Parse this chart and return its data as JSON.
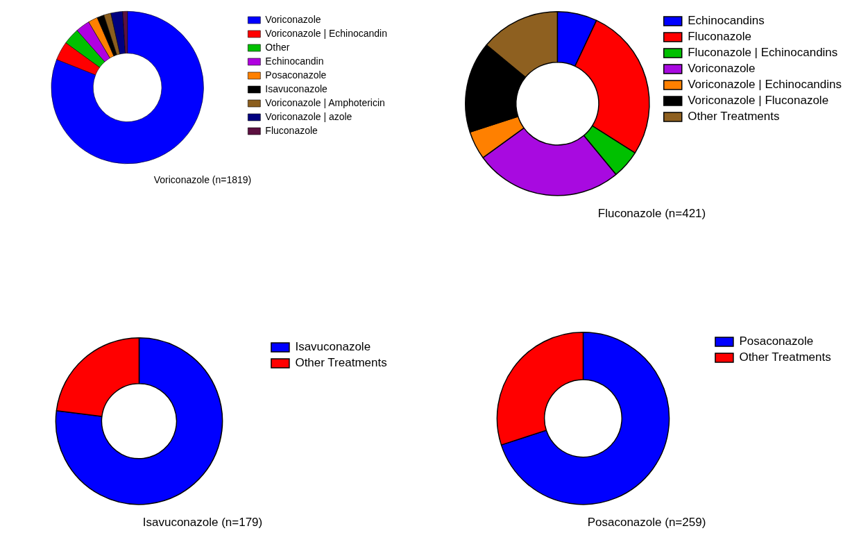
{
  "chart_data": [
    {
      "type": "donut",
      "title": "Voriconazole (n=1819)",
      "legend": "right",
      "categories": [
        "Voriconazole",
        "Voriconazole | Echinocandin",
        "Other",
        "Echinocandin",
        "Posaconazole",
        "Isavuconazole",
        "Voriconazole | Amphotericin",
        "Voriconazole | azole",
        "Fluconazole"
      ],
      "values": [
        81,
        4,
        3.5,
        3,
        2,
        1.5,
        1.5,
        2.5,
        1
      ],
      "colors": [
        "#0000ff",
        "#ff0000",
        "#00c000",
        "#b000e0",
        "#ff8000",
        "#000000",
        "#8b5e1e",
        "#000080",
        "#5c1040"
      ]
    },
    {
      "type": "donut",
      "title": "Fluconazole (n=421)",
      "legend": "right",
      "categories": [
        "Echinocandins",
        "Fluconazole",
        "Fluconazole | Echinocandins",
        "Voriconazole",
        "Voriconazole | Echinocandins",
        "Voriconazole | Fluconazole",
        "Other Treatments"
      ],
      "values": [
        7,
        27,
        5,
        26,
        5,
        16,
        14
      ],
      "colors": [
        "#0000ff",
        "#ff0000",
        "#00c000",
        "#a80ae0",
        "#ff8000",
        "#000000",
        "#8e6020"
      ]
    },
    {
      "type": "donut",
      "title": "Isavuconazole (n=179)",
      "legend": "right",
      "categories": [
        "Isavuconazole",
        "Other Treatments"
      ],
      "values": [
        77,
        23
      ],
      "colors": [
        "#0000ff",
        "#ff0000"
      ]
    },
    {
      "type": "donut",
      "title": "Posaconazole (n=259)",
      "legend": "right",
      "categories": [
        "Posaconazole",
        "Other Treatments"
      ],
      "values": [
        70,
        30
      ],
      "colors": [
        "#0000ff",
        "#ff0000"
      ]
    }
  ]
}
